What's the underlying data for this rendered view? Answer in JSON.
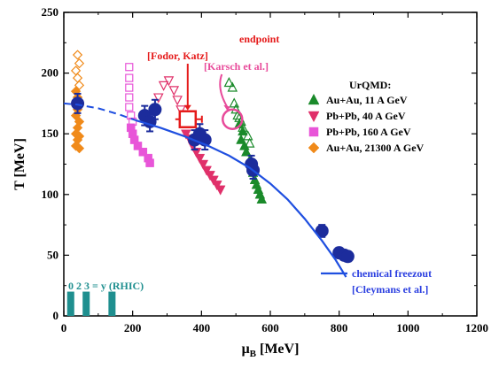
{
  "chart_data": {
    "type": "scatter",
    "xlabel_main": "μ",
    "xlabel_sub": "B",
    "xlabel_unit": "[MeV]",
    "ylabel": "T [MeV]",
    "xlim": [
      0,
      1200
    ],
    "ylim": [
      0,
      250
    ],
    "x_ticks": [
      0,
      200,
      400,
      600,
      800,
      1000,
      1200
    ],
    "y_ticks": [
      0,
      50,
      100,
      150,
      200,
      250
    ],
    "grid": false,
    "legend_title": "UrQMD:",
    "legend_position": "right",
    "series": [
      {
        "name": "Au+Au, 11 A GeV",
        "marker": "triangle-up",
        "color": "#1a8a2a",
        "filled_points": [
          [
            510,
            158
          ],
          [
            520,
            152
          ],
          [
            515,
            145
          ],
          [
            525,
            140
          ],
          [
            530,
            135
          ],
          [
            540,
            128
          ],
          [
            545,
            122
          ],
          [
            550,
            118
          ],
          [
            555,
            112
          ],
          [
            560,
            108
          ],
          [
            565,
            104
          ],
          [
            570,
            100
          ],
          [
            575,
            96
          ]
        ],
        "open_points": [
          [
            480,
            192
          ],
          [
            490,
            188
          ],
          [
            495,
            175
          ],
          [
            500,
            170
          ],
          [
            505,
            165
          ],
          [
            510,
            163
          ],
          [
            515,
            160
          ],
          [
            520,
            155
          ],
          [
            535,
            148
          ],
          [
            540,
            142
          ]
        ]
      },
      {
        "name": "Pb+Pb, 40 A GeV",
        "marker": "triangle-down",
        "color": "#e0306a",
        "filled_points": [
          [
            355,
            150
          ],
          [
            365,
            146
          ],
          [
            375,
            140
          ],
          [
            385,
            135
          ],
          [
            395,
            130
          ],
          [
            405,
            125
          ],
          [
            415,
            120
          ],
          [
            425,
            116
          ],
          [
            435,
            112
          ],
          [
            445,
            108
          ],
          [
            455,
            104
          ]
        ],
        "open_points": [
          [
            275,
            180
          ],
          [
            290,
            190
          ],
          [
            305,
            194
          ],
          [
            320,
            186
          ],
          [
            330,
            178
          ],
          [
            340,
            170
          ],
          [
            350,
            162
          ]
        ]
      },
      {
        "name": "Pb+Pb, 160 A GeV",
        "marker": "square",
        "color": "#e855d8",
        "filled_points": [
          [
            195,
            155
          ],
          [
            200,
            150
          ],
          [
            205,
            145
          ],
          [
            215,
            140
          ],
          [
            230,
            135
          ],
          [
            245,
            130
          ],
          [
            250,
            126
          ]
        ],
        "open_points": [
          [
            190,
            205
          ],
          [
            190,
            196
          ],
          [
            190,
            188
          ],
          [
            190,
            180
          ],
          [
            190,
            172
          ],
          [
            195,
            165
          ],
          [
            200,
            160
          ]
        ]
      },
      {
        "name": "Au+Au, 21300 A GeV",
        "marker": "diamond",
        "color": "#f08a1a",
        "filled_points": [
          [
            35,
            185
          ],
          [
            40,
            180
          ],
          [
            45,
            175
          ],
          [
            40,
            170
          ],
          [
            35,
            165
          ],
          [
            45,
            160
          ],
          [
            40,
            155
          ],
          [
            35,
            150
          ],
          [
            45,
            148
          ],
          [
            40,
            145
          ],
          [
            35,
            140
          ],
          [
            45,
            138
          ]
        ],
        "open_points": [
          [
            40,
            215
          ],
          [
            45,
            208
          ],
          [
            35,
            202
          ],
          [
            40,
            196
          ],
          [
            45,
            190
          ]
        ]
      },
      {
        "name": "chemical freezeout data",
        "marker": "circle",
        "color": "#1c2c9c",
        "error_points": [
          [
            40,
            175,
            8
          ],
          [
            235,
            165,
            8
          ],
          [
            250,
            160,
            8
          ],
          [
            265,
            170,
            8
          ],
          [
            380,
            145,
            8
          ],
          [
            395,
            150,
            8
          ],
          [
            410,
            145,
            8
          ],
          [
            545,
            125,
            7
          ],
          [
            550,
            120,
            7
          ],
          [
            750,
            70,
            5
          ],
          [
            800,
            52,
            4
          ],
          [
            815,
            50,
            4
          ],
          [
            825,
            49,
            4
          ]
        ]
      }
    ],
    "freezeout_curve": {
      "color": "#1f4fe0",
      "dashed_x": [
        0,
        40,
        100,
        160,
        210
      ],
      "dashed_y": [
        175,
        174,
        171,
        166,
        161
      ],
      "solid_x": [
        210,
        280,
        350,
        420,
        480,
        540,
        600,
        650,
        700,
        750,
        790,
        820
      ],
      "solid_y": [
        161,
        155,
        148,
        140,
        132,
        122,
        109,
        96,
        80,
        62,
        46,
        32
      ]
    },
    "annotations": {
      "endpoint_label": "endpoint",
      "fodor_label": "[Fodor, Katz]",
      "karsch_label": "[Karsch et al.]",
      "fodor_point": [
        360,
        162
      ],
      "karsch_point": [
        490,
        162
      ],
      "freezeout_label": "chemical freezout",
      "cleymans_label": "[Cleymans et al.]",
      "rhic_label": "0  2    3 = y  (RHIC)",
      "rhic_bars": [
        [
          20,
          0,
          20
        ],
        [
          65,
          0,
          20
        ],
        [
          140,
          0,
          20
        ]
      ]
    },
    "colors": {
      "red": "#e51a1a",
      "pink": "#e84a9a",
      "rhic": "#1f8f8f",
      "blue_text": "#2a3ee0"
    }
  }
}
